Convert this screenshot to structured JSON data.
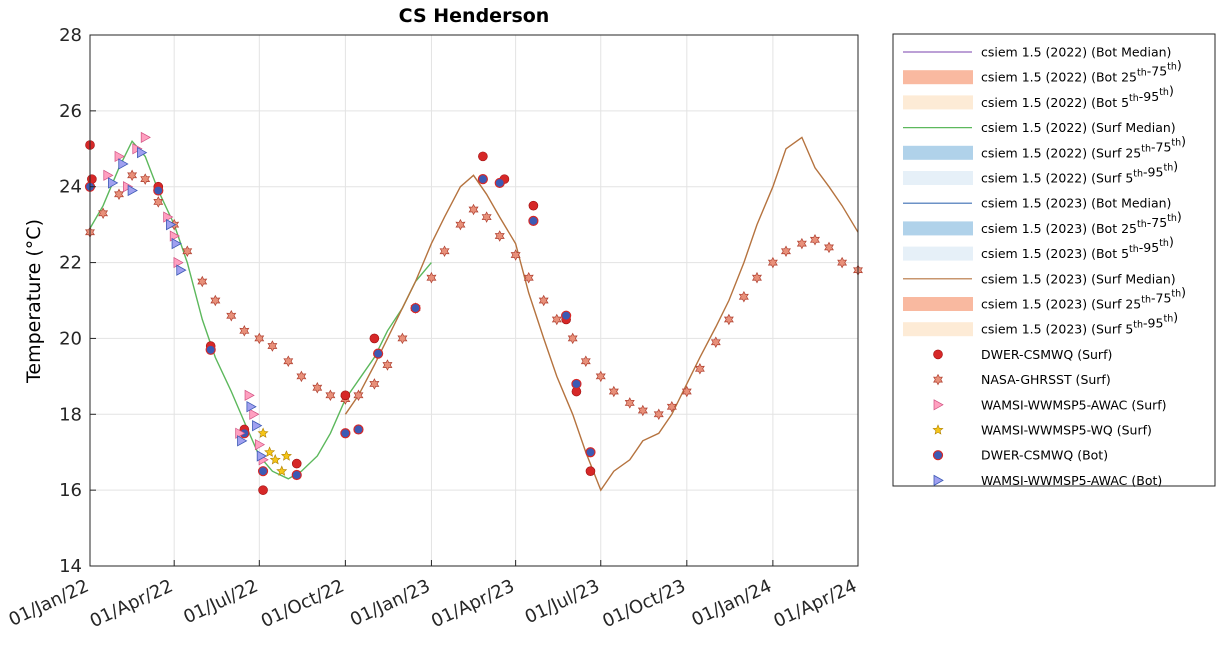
{
  "chart_data": {
    "type": "line",
    "title": "CS Henderson",
    "ylabel": "Temperature (°C)",
    "xlabel": "",
    "ylim": [
      14,
      28
    ],
    "yticks": [
      14,
      16,
      18,
      20,
      22,
      24,
      26,
      28
    ],
    "xlim": [
      "2022-01-01",
      "2024-04-01"
    ],
    "xticks": [
      "2022-01-01",
      "2022-04-01",
      "2022-07-01",
      "2022-10-01",
      "2023-01-01",
      "2023-04-01",
      "2023-07-01",
      "2023-10-01",
      "2024-01-01",
      "2024-04-01"
    ],
    "xticklabels": [
      "01/Jan/22",
      "01/Apr/22",
      "01/Jul/22",
      "01/Oct/22",
      "01/Jan/23",
      "01/Apr/23",
      "01/Jul/23",
      "01/Oct/23",
      "01/Jan/24",
      "01/Apr/24"
    ],
    "grid": true,
    "legend_position": "outside-right",
    "legend": [
      {
        "label": "csiem 1.5 (2022) (Bot Median)",
        "kind": "line",
        "color": "#9467bd"
      },
      {
        "label": "csiem 1.5 (2022) (Bot 25th-75th)",
        "kind": "band",
        "color": "#f9b9a0"
      },
      {
        "label": "csiem 1.5 (2022) (Bot 5th-95th)",
        "kind": "band",
        "color": "#fdebd6"
      },
      {
        "label": "csiem 1.5 (2022) (Surf Median)",
        "kind": "line",
        "color": "#5cb85c"
      },
      {
        "label": "csiem 1.5 (2022) (Surf 25th-75th)",
        "kind": "band",
        "color": "#b0d2ea"
      },
      {
        "label": "csiem 1.5 (2022) (Surf 5th-95th)",
        "kind": "band",
        "color": "#e6f0f8"
      },
      {
        "label": "csiem 1.5 (2023) (Bot Median)",
        "kind": "line",
        "color": "#3c6eb4"
      },
      {
        "label": "csiem 1.5 (2023) (Bot 25th-75th)",
        "kind": "band",
        "color": "#b0d2ea"
      },
      {
        "label": "csiem 1.5 (2023) (Bot 5th-95th)",
        "kind": "band",
        "color": "#e6f0f8"
      },
      {
        "label": "csiem 1.5 (2023) (Surf Median)",
        "kind": "line",
        "color": "#b5733f"
      },
      {
        "label": "csiem 1.5 (2023) (Surf 25th-75th)",
        "kind": "band",
        "color": "#f9b9a0"
      },
      {
        "label": "csiem 1.5 (2023) (Surf 5th-95th)",
        "kind": "band",
        "color": "#fdebd6"
      },
      {
        "label": "DWER-CSMWQ (Surf)",
        "kind": "marker",
        "marker": "circle",
        "color": "#d62828"
      },
      {
        "label": "NASA-GHRSST (Surf)",
        "kind": "marker",
        "marker": "hexagram",
        "color": "#e07060"
      },
      {
        "label": "WAMSI-WWMSP5-AWAC (Surf)",
        "kind": "marker",
        "marker": "triangle-right",
        "color": "#ff80b0"
      },
      {
        "label": "WAMSI-WWMSP5-WQ (Surf)",
        "kind": "marker",
        "marker": "star",
        "color": "#f5c518"
      },
      {
        "label": "DWER-CSMWQ (Bot)",
        "kind": "marker",
        "marker": "circle-blue",
        "color": "#3c5ab4"
      },
      {
        "label": "WAMSI-WWMSP5-AWAC (Bot)",
        "kind": "marker",
        "marker": "triangle-right-blue",
        "color": "#8080e0"
      }
    ],
    "series": [
      {
        "name": "csiem 1.5 (2022) (Surf Median)",
        "color": "#5cb85c",
        "x": [
          "2022-01-01",
          "2022-01-15",
          "2022-02-01",
          "2022-02-15",
          "2022-03-01",
          "2022-03-15",
          "2022-04-01",
          "2022-04-15",
          "2022-05-01",
          "2022-05-15",
          "2022-06-01",
          "2022-06-15",
          "2022-07-01",
          "2022-07-15",
          "2022-08-01",
          "2022-08-15",
          "2022-09-01",
          "2022-09-15",
          "2022-10-01",
          "2022-10-15",
          "2022-11-01",
          "2022-11-15",
          "2022-12-01",
          "2022-12-15",
          "2023-01-01"
        ],
        "y": [
          22.9,
          23.5,
          24.5,
          25.2,
          24.8,
          23.9,
          23.0,
          22.0,
          20.5,
          19.5,
          18.6,
          17.8,
          16.9,
          16.5,
          16.3,
          16.5,
          16.9,
          17.5,
          18.4,
          18.9,
          19.5,
          20.2,
          20.8,
          21.5,
          22.0
        ]
      },
      {
        "name": "csiem 1.5 (2023) (Surf Median)",
        "color": "#b5733f",
        "x": [
          "2022-10-01",
          "2022-10-15",
          "2022-11-01",
          "2022-11-15",
          "2022-12-01",
          "2022-12-15",
          "2023-01-01",
          "2023-01-15",
          "2023-02-01",
          "2023-02-15",
          "2023-03-01",
          "2023-03-15",
          "2023-04-01",
          "2023-04-15",
          "2023-05-01",
          "2023-05-15",
          "2023-06-01",
          "2023-06-15",
          "2023-07-01",
          "2023-07-15",
          "2023-08-01",
          "2023-08-15",
          "2023-09-01",
          "2023-09-15",
          "2023-10-01",
          "2023-10-15",
          "2023-11-01",
          "2023-11-15",
          "2023-12-01",
          "2023-12-15",
          "2024-01-01",
          "2024-01-15",
          "2024-02-01",
          "2024-02-15",
          "2024-03-01",
          "2024-03-15",
          "2024-04-01"
        ],
        "y": [
          18.0,
          18.5,
          19.3,
          20.0,
          20.8,
          21.5,
          22.5,
          23.2,
          24.0,
          24.3,
          23.8,
          23.2,
          22.5,
          21.2,
          20.0,
          19.0,
          18.0,
          17.0,
          16.0,
          16.5,
          16.8,
          17.3,
          17.5,
          18.0,
          18.8,
          19.5,
          20.3,
          21.0,
          22.0,
          23.0,
          24.0,
          25.0,
          25.3,
          24.5,
          24.0,
          23.5,
          22.8
        ]
      },
      {
        "name": "NASA-GHRSST (Surf)",
        "color": "#e07060",
        "x": [
          "2022-01-01",
          "2022-01-15",
          "2022-02-01",
          "2022-02-15",
          "2022-03-01",
          "2022-03-15",
          "2022-04-01",
          "2022-04-15",
          "2022-05-01",
          "2022-05-15",
          "2022-06-01",
          "2022-06-15",
          "2022-07-01",
          "2022-07-15",
          "2022-08-01",
          "2022-08-15",
          "2022-09-01",
          "2022-09-15",
          "2022-10-01",
          "2022-10-15",
          "2022-11-01",
          "2022-11-15",
          "2022-12-01",
          "2022-12-15",
          "2023-01-01",
          "2023-01-15",
          "2023-02-01",
          "2023-02-15",
          "2023-03-01",
          "2023-03-15",
          "2023-04-01",
          "2023-04-15",
          "2023-05-01",
          "2023-05-15",
          "2023-06-01",
          "2023-06-15",
          "2023-07-01",
          "2023-07-15",
          "2023-08-01",
          "2023-08-15",
          "2023-09-01",
          "2023-09-15",
          "2023-10-01",
          "2023-10-15",
          "2023-11-01",
          "2023-11-15",
          "2023-12-01",
          "2023-12-15",
          "2024-01-01",
          "2024-01-15",
          "2024-02-01",
          "2024-02-15",
          "2024-03-01",
          "2024-03-15",
          "2024-04-01"
        ],
        "y": [
          22.8,
          23.3,
          23.8,
          24.3,
          24.2,
          23.6,
          23.0,
          22.3,
          21.5,
          21.0,
          20.6,
          20.2,
          20.0,
          19.8,
          19.4,
          19.0,
          18.7,
          18.5,
          18.4,
          18.5,
          18.8,
          19.3,
          20.0,
          20.8,
          21.6,
          22.3,
          23.0,
          23.4,
          23.2,
          22.7,
          22.2,
          21.6,
          21.0,
          20.5,
          20.0,
          19.4,
          19.0,
          18.6,
          18.3,
          18.1,
          18.0,
          18.2,
          18.6,
          19.2,
          19.9,
          20.5,
          21.1,
          21.6,
          22.0,
          22.3,
          22.5,
          22.6,
          22.4,
          22.0,
          21.8
        ]
      },
      {
        "name": "DWER-CSMWQ (Surf)",
        "color": "#d62828",
        "x": [
          "2022-01-01",
          "2022-01-03",
          "2022-03-15",
          "2022-05-10",
          "2022-06-15",
          "2022-07-05",
          "2022-08-10",
          "2022-10-01",
          "2022-11-01",
          "2023-02-25",
          "2023-03-20",
          "2023-04-20",
          "2023-05-25",
          "2023-06-05",
          "2023-06-20"
        ],
        "y": [
          25.1,
          24.2,
          24.0,
          19.8,
          17.6,
          16.0,
          16.7,
          18.5,
          20.0,
          24.8,
          24.2,
          23.5,
          20.5,
          18.6,
          16.5
        ]
      },
      {
        "name": "DWER-CSMWQ (Bot)",
        "color": "#3c5ab4",
        "x": [
          "2022-01-01",
          "2022-03-15",
          "2022-05-10",
          "2022-06-15",
          "2022-07-05",
          "2022-08-10",
          "2022-10-01",
          "2022-10-15",
          "2022-11-05",
          "2022-12-15",
          "2023-02-25",
          "2023-03-15",
          "2023-04-20",
          "2023-05-25",
          "2023-06-05",
          "2023-06-20"
        ],
        "y": [
          24.0,
          23.9,
          19.7,
          17.5,
          16.5,
          16.4,
          17.5,
          17.6,
          19.6,
          20.8,
          24.2,
          24.1,
          23.1,
          20.6,
          18.8,
          17.0
        ]
      },
      {
        "name": "WAMSI-WWMSP5-AWAC (Surf)",
        "color": "#ff80b0",
        "x": [
          "2022-01-20",
          "2022-02-01",
          "2022-02-10",
          "2022-02-20",
          "2022-03-01",
          "2022-03-25",
          "2022-04-01",
          "2022-04-05",
          "2022-06-10",
          "2022-06-20",
          "2022-06-25",
          "2022-07-01",
          "2022-07-05"
        ],
        "y": [
          24.3,
          24.8,
          24.0,
          25.0,
          25.3,
          23.2,
          22.7,
          22.0,
          17.5,
          18.5,
          18.0,
          17.2,
          16.8
        ]
      },
      {
        "name": "WAMSI-WWMSP5-AWAC (Bot)",
        "color": "#8080e0",
        "x": [
          "2022-01-25",
          "2022-02-05",
          "2022-02-15",
          "2022-02-25",
          "2022-03-28",
          "2022-04-03",
          "2022-04-08",
          "2022-06-12",
          "2022-06-22",
          "2022-06-28",
          "2022-07-03"
        ],
        "y": [
          24.1,
          24.6,
          23.9,
          24.9,
          23.0,
          22.5,
          21.8,
          17.3,
          18.2,
          17.7,
          16.9
        ]
      },
      {
        "name": "WAMSI-WWMSP5-WQ (Surf)",
        "color": "#f5c518",
        "x": [
          "2022-07-05",
          "2022-07-12",
          "2022-07-18",
          "2022-07-25",
          "2022-07-30"
        ],
        "y": [
          17.5,
          17.0,
          16.8,
          16.5,
          16.9
        ]
      }
    ]
  }
}
